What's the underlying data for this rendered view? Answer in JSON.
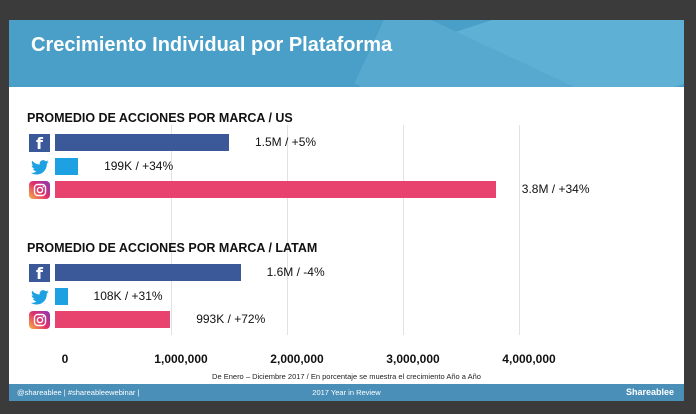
{
  "header": {
    "title": "Crecimiento Individual por Plataforma"
  },
  "footer": {
    "left": "@shareablee | #shareableewebinar |",
    "center": "2017 Year in Review",
    "brand": "Shareablee"
  },
  "note": "De Enero – Diciembre 2017 / En porcentaje se muestra el crecimiento Año a Año",
  "colors": {
    "facebook": "#3b5998",
    "twitter": "#1da1e2",
    "instagram": "#e8426e",
    "header": "#4a9fc8"
  },
  "chart_data": {
    "type": "bar",
    "orientation": "horizontal",
    "xlim": [
      0,
      4000000
    ],
    "x_ticks": [
      "0",
      "1,000,000",
      "2,000,000",
      "3,000,000",
      "4,000,000"
    ],
    "groups": [
      {
        "title": "PROMEDIO DE ACCIONES POR MARCA / US",
        "bars": [
          {
            "platform": "facebook-icon",
            "value": 1500000,
            "label": "1.5M / +5%"
          },
          {
            "platform": "twitter-icon",
            "value": 199000,
            "label": "199K / +34%"
          },
          {
            "platform": "instagram-icon",
            "value": 3800000,
            "label": "3.8M / +34%"
          }
        ]
      },
      {
        "title": "PROMEDIO DE ACCIONES POR MARCA / LATAM",
        "bars": [
          {
            "platform": "facebook-icon",
            "value": 1600000,
            "label": "1.6M / -4%"
          },
          {
            "platform": "twitter-icon",
            "value": 108000,
            "label": "108K / +31%"
          },
          {
            "platform": "instagram-icon",
            "value": 993000,
            "label": "993K / +72%"
          }
        ]
      }
    ]
  }
}
